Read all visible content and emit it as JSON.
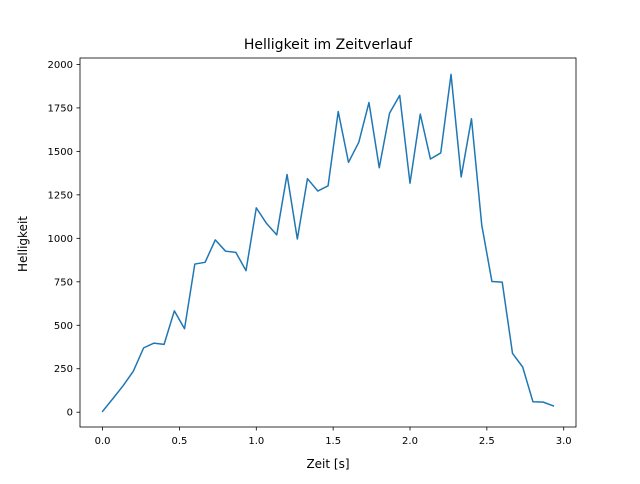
{
  "chart_data": {
    "type": "line",
    "title": "Helligkeit im Zeitverlauf",
    "xlabel": "Zeit [s]",
    "ylabel": "Helligkeit",
    "xlim": [
      -0.147,
      3.08
    ],
    "ylim": [
      -85,
      2037
    ],
    "x_ticks": [
      0.0,
      0.5,
      1.0,
      1.5,
      2.0,
      2.5,
      3.0
    ],
    "x_tick_labels": [
      "0.0",
      "0.5",
      "1.0",
      "1.5",
      "2.0",
      "2.5",
      "3.0"
    ],
    "y_ticks": [
      0,
      250,
      500,
      750,
      1000,
      1250,
      1500,
      1750,
      2000
    ],
    "y_tick_labels": [
      "0",
      "250",
      "500",
      "750",
      "1000",
      "1250",
      "1500",
      "1750",
      "2000"
    ],
    "grid": false,
    "legend": "none",
    "line_color": "#1f77b4",
    "series": [
      {
        "x": [
          0.0,
          0.067,
          0.133,
          0.2,
          0.267,
          0.333,
          0.4,
          0.467,
          0.533,
          0.6,
          0.667,
          0.733,
          0.8,
          0.867,
          0.933,
          1.0,
          1.067,
          1.133,
          1.2,
          1.267,
          1.333,
          1.4,
          1.467,
          1.533,
          1.6,
          1.667,
          1.733,
          1.8,
          1.867,
          1.933,
          2.0,
          2.067,
          2.133,
          2.2,
          2.267,
          2.333,
          2.4,
          2.467,
          2.533,
          2.6,
          2.667,
          2.733,
          2.8,
          2.867,
          2.933
        ],
        "y": [
          5,
          78,
          152,
          236,
          370,
          397,
          390,
          583,
          480,
          852,
          862,
          991,
          926,
          919,
          814,
          1175,
          1085,
          1020,
          1367,
          996,
          1343,
          1272,
          1302,
          1729,
          1437,
          1553,
          1781,
          1406,
          1720,
          1822,
          1317,
          1714,
          1456,
          1491,
          1943,
          1353,
          1688,
          1075,
          752,
          748,
          338,
          260,
          60,
          58,
          36
        ]
      }
    ]
  }
}
